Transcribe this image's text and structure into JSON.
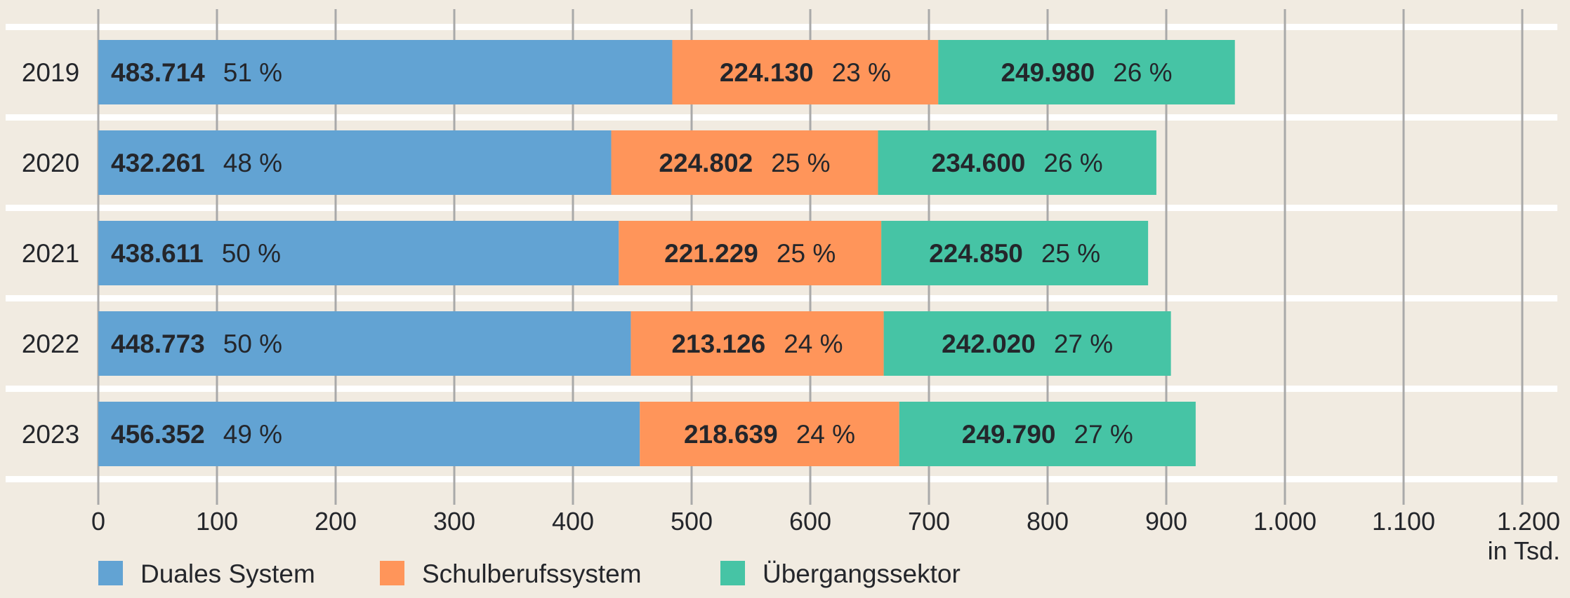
{
  "chart_data": {
    "type": "bar",
    "orientation": "horizontal",
    "stacked": true,
    "categories": [
      "2019",
      "2020",
      "2021",
      "2022",
      "2023"
    ],
    "series": [
      {
        "name": "Duales System",
        "color": "#62a3d3",
        "values": [
          483.714,
          432.261,
          438.611,
          448.773,
          456.352
        ],
        "labels": [
          "483.714",
          "432.261",
          "438.611",
          "448.773",
          "456.352"
        ],
        "percents": [
          "51 %",
          "48 %",
          "50 %",
          "50 %",
          "49 %"
        ]
      },
      {
        "name": "Schulberufssystem",
        "color": "#ff955a",
        "values": [
          224.13,
          224.802,
          221.229,
          213.126,
          218.639
        ],
        "labels": [
          "224.130",
          "224.802",
          "221.229",
          "213.126",
          "218.639"
        ],
        "percents": [
          "23 %",
          "25 %",
          "25 %",
          "24 %",
          "24 %"
        ]
      },
      {
        "name": "Übergangssektor",
        "color": "#46c4a5",
        "values": [
          249.98,
          234.6,
          224.85,
          242.02,
          249.79
        ],
        "labels": [
          "249.980",
          "234.600",
          "224.850",
          "242.020",
          "249.790"
        ],
        "percents": [
          "26 %",
          "26 %",
          "25 %",
          "27 %",
          "27 %"
        ]
      }
    ],
    "xlim": [
      0,
      1200
    ],
    "xticks": [
      0,
      100,
      200,
      300,
      400,
      500,
      600,
      700,
      800,
      900,
      1000,
      1100,
      1200
    ],
    "xtick_labels": [
      "0",
      "100",
      "200",
      "300",
      "400",
      "500",
      "600",
      "700",
      "800",
      "900",
      "1.000",
      "1.100",
      "1.200"
    ],
    "xunit": "in Tsd.",
    "grid": true,
    "legend": "bottom-left"
  }
}
